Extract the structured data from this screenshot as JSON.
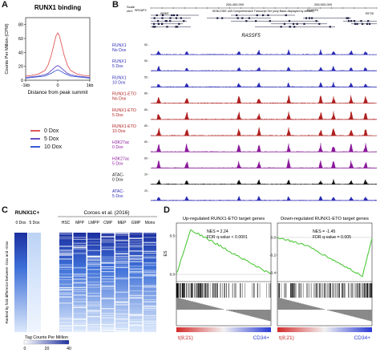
{
  "panels": {
    "A": {
      "letter": "A",
      "chart_data": {
        "type": "line",
        "title": "RUNX1 binding",
        "xlabel": "Distance from peak summit",
        "ylabel": "Counts Per Million (CPM)",
        "x_ticks": [
          "-1kb",
          "0",
          "1kb"
        ],
        "y_ticks": [
          "0",
          "20",
          "40",
          "60",
          "80"
        ],
        "xlim": [
          -1,
          1
        ],
        "ylim": [
          0,
          90
        ],
        "x": [
          -1,
          -0.8,
          -0.6,
          -0.4,
          -0.3,
          -0.2,
          -0.1,
          -0.05,
          0,
          0.05,
          0.1,
          0.2,
          0.3,
          0.4,
          0.6,
          0.8,
          1
        ],
        "series": [
          {
            "name": "0 Dox",
            "color": "#e05a5a",
            "values": [
              6,
              7,
              9,
              14,
              22,
              36,
              55,
              64,
              68,
              64,
              55,
              36,
              22,
              14,
              9,
              7,
              6
            ]
          },
          {
            "name": "5 Dox",
            "color": "#6a4fc4",
            "values": [
              4,
              5,
              6,
              8,
              10,
              14,
              18,
              20,
              21,
              20,
              18,
              14,
              10,
              8,
              6,
              5,
              4
            ]
          },
          {
            "name": "10 Dox",
            "color": "#3a5bd6",
            "values": [
              3,
              4,
              5,
              6,
              8,
              10,
              13,
              14,
              15,
              14,
              13,
              10,
              8,
              6,
              5,
              4,
              3
            ]
          }
        ],
        "legend": "bottom"
      }
    },
    "B": {
      "letter": "B",
      "gene_label": "RASSF5",
      "header_labels": {
        "scale": "Scale",
        "chr": "chr1",
        "coord_left": "206,400,000",
        "coord_right": "206,500,000",
        "track_note": "GENCODE v28 Comprehensive Transcript Set (only Basic displayed by default)",
        "genes_top": [
          "SRGAP2",
          "IKBKE",
          "RASSF5",
          "EIF2D"
        ]
      },
      "tracks": [
        {
          "label": "RUNX1 No Dox",
          "color": "#2b2bb5",
          "scale": "50 -"
        },
        {
          "label": "RUNX1 5 Dox",
          "color": "#2b2bb5",
          "scale": "50 -"
        },
        {
          "label": "RUNX1 10 Dox",
          "color": "#2b2bb5",
          "scale": "50 -"
        },
        {
          "label": "RUNX1-ETO No Dox",
          "color": "#b02020",
          "scale": "80 -"
        },
        {
          "label": "RUNX1-ETO 5 Dox",
          "color": "#b02020",
          "scale": "80 -"
        },
        {
          "label": "RUNX1-ETO 10 Dox",
          "color": "#b02020",
          "scale": "80 -"
        },
        {
          "label": "H3K27ac 0 Dox",
          "color": "#8a1a9a",
          "scale": "60 -"
        },
        {
          "label": "H3K27ac 5 Dox",
          "color": "#8a1a9a",
          "scale": "60 -"
        },
        {
          "label": "ATAC- 0 Dox",
          "color": "#111111",
          "scale": "20 -"
        },
        {
          "label": "ATAC- 5 Dox",
          "color": "#2b2bb5",
          "scale": "20 -"
        }
      ]
    },
    "C": {
      "letter": "C",
      "group1_title": "RUNX1C+",
      "group2_title": "Corces et al. (2016)",
      "columns1": [
        "0 Dox",
        "5 Dox"
      ],
      "columns2": [
        "HSC",
        "MPP",
        "LMPP",
        "CMP",
        "MEP",
        "GMP",
        "Mono"
      ],
      "ylabel": "Ranked by fold-difference between -Dox and +Dox",
      "colorbar_title": "Tag Counts Per Million",
      "colorbar_ticks": [
        "0",
        "20",
        "40"
      ]
    },
    "D": {
      "letter": "D",
      "plots": [
        {
          "title": "Up-regulated RUNX1-ETO target genes",
          "nes": "NES = 2.24",
          "fdr": "FDR q-value < 0.0001",
          "left_label": "t(8;21)",
          "right_label": "CD34+",
          "ylabel": "ES",
          "y_ticks": [
            "0.5",
            "0.0"
          ],
          "direction": "up"
        },
        {
          "title": "Down-regulated RUNX1-ETO target genes",
          "nes": "NES = -1.45",
          "fdr": "FDR q-value = 0.005",
          "left_label": "t(8;21)",
          "right_label": "CD34+",
          "ylabel": "",
          "y_ticks": [
            "0.0",
            "-0.2",
            "-0.4"
          ],
          "direction": "down"
        }
      ]
    }
  }
}
